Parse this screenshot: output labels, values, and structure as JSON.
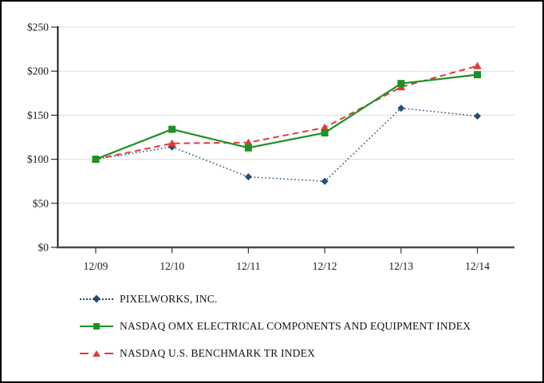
{
  "chart_data": {
    "type": "line",
    "title": "",
    "xlabel": "",
    "ylabel": "",
    "categories": [
      "12/09",
      "12/10",
      "12/11",
      "12/12",
      "12/13",
      "12/14"
    ],
    "series": [
      {
        "name": "PIXELWORKS, INC.",
        "values": [
          100,
          114,
          80,
          75,
          158,
          149
        ],
        "color": "#1f4e79",
        "line_style": "dotted",
        "marker": "diamond"
      },
      {
        "name": "NASDAQ OMX ELECTRICAL COMPONENTS AND EQUIPMENT INDEX",
        "values": [
          100,
          134,
          113,
          130,
          186,
          196
        ],
        "color": "#1e9125",
        "line_style": "solid",
        "marker": "square"
      },
      {
        "name": "NASDAQ U.S. BENCHMARK TR INDEX",
        "values": [
          100,
          118,
          119,
          136,
          182,
          206
        ],
        "color": "#e03a3a",
        "line_style": "dashed",
        "marker": "triangle"
      }
    ],
    "ylim": [
      0,
      250
    ],
    "y_ticks": [
      {
        "value": 0,
        "label": "$0"
      },
      {
        "value": 50,
        "label": "$50"
      },
      {
        "value": 100,
        "label": "$100"
      },
      {
        "value": 150,
        "label": "$150"
      },
      {
        "value": 200,
        "label": "$200"
      },
      {
        "value": 250,
        "label": "$250"
      }
    ],
    "grid": true,
    "legend_position": "bottom-left",
    "style": {
      "grid_color": "#dcdcdc",
      "y_axis_color": "#000000",
      "x_axis_color": "#4a4a4a",
      "tick_color": "#333333",
      "text_color": "#1a1a1a"
    }
  }
}
